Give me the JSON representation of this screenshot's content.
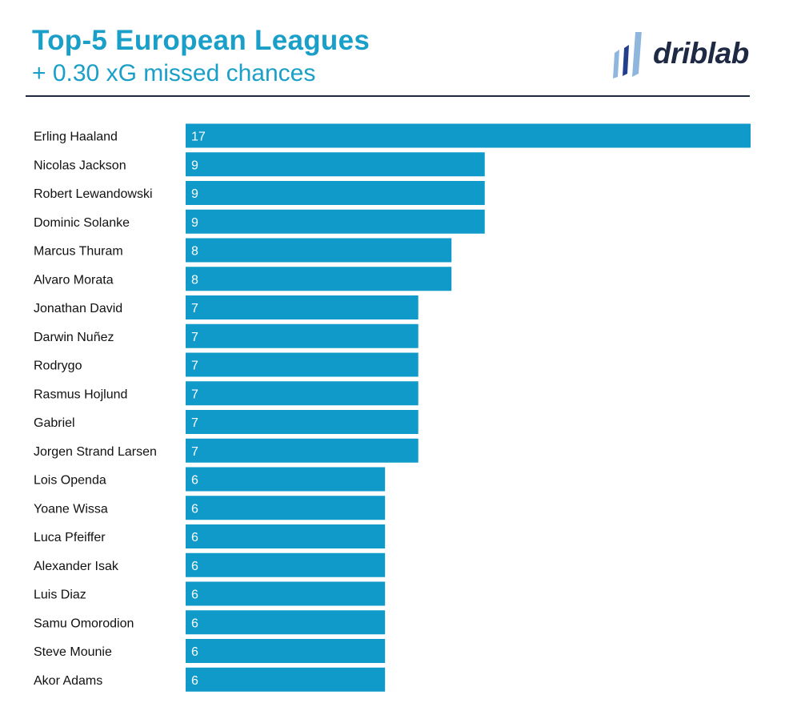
{
  "header": {
    "title": "Top-5 European Leagues",
    "subtitle": "+ 0.30 xG missed chances",
    "logo_text": "driblab"
  },
  "colors": {
    "bar": "#0f9ac9",
    "title": "#1a9fc9",
    "logo": "#1e2a44",
    "logo_mark_light": "#8fb7de",
    "logo_mark_dark": "#233f8c"
  },
  "chart_data": {
    "type": "bar",
    "orientation": "horizontal",
    "title": "Top-5 European Leagues",
    "subtitle": "+ 0.30 xG missed chances",
    "xlabel": "",
    "ylabel": "",
    "xlim": [
      0,
      17
    ],
    "grid": false,
    "legend": "none",
    "categories": [
      "Erling Haaland",
      "Nicolas Jackson",
      "Robert Lewandowski",
      "Dominic Solanke",
      "Marcus Thuram",
      "Alvaro Morata",
      "Jonathan David",
      "Darwin Nuñez",
      "Rodrygo",
      "Rasmus Hojlund",
      "Gabriel",
      "Jorgen Strand Larsen",
      "Lois Openda",
      "Yoane Wissa",
      "Luca Pfeiffer",
      "Alexander Isak",
      "Luis Diaz",
      "Samu Omorodion",
      "Steve Mounie",
      "Akor Adams"
    ],
    "values": [
      17,
      9,
      9,
      9,
      8,
      8,
      7,
      7,
      7,
      7,
      7,
      7,
      6,
      6,
      6,
      6,
      6,
      6,
      6,
      6
    ]
  }
}
